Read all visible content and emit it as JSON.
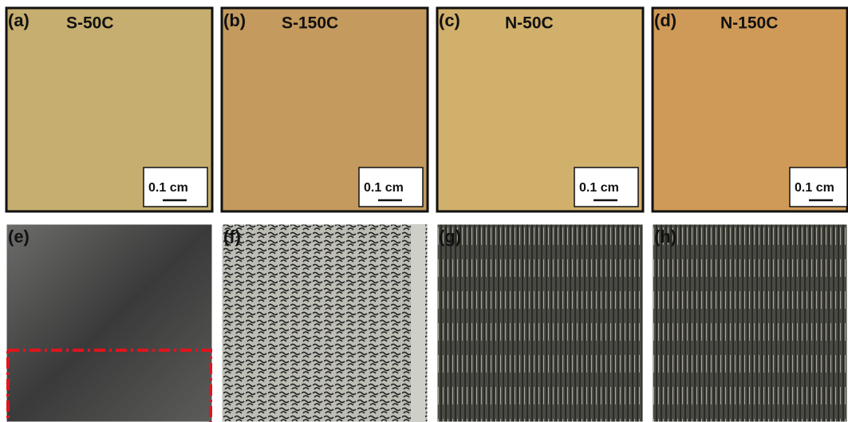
{
  "panels": [
    {
      "label": "(a)",
      "title": "S-50C",
      "scale_bar": "0.1 cm"
    },
    {
      "label": "(b)",
      "title": "S-150C",
      "scale_bar": "0.1 cm"
    },
    {
      "label": "(c)",
      "title": "N-50C",
      "scale_bar": "0.1 cm"
    },
    {
      "label": "(d)",
      "title": "N-150C",
      "scale_bar": "0.1 cm"
    },
    {
      "label": "(e)"
    },
    {
      "label": "(f)"
    },
    {
      "label": "(g)"
    },
    {
      "label": "(h)"
    }
  ]
}
